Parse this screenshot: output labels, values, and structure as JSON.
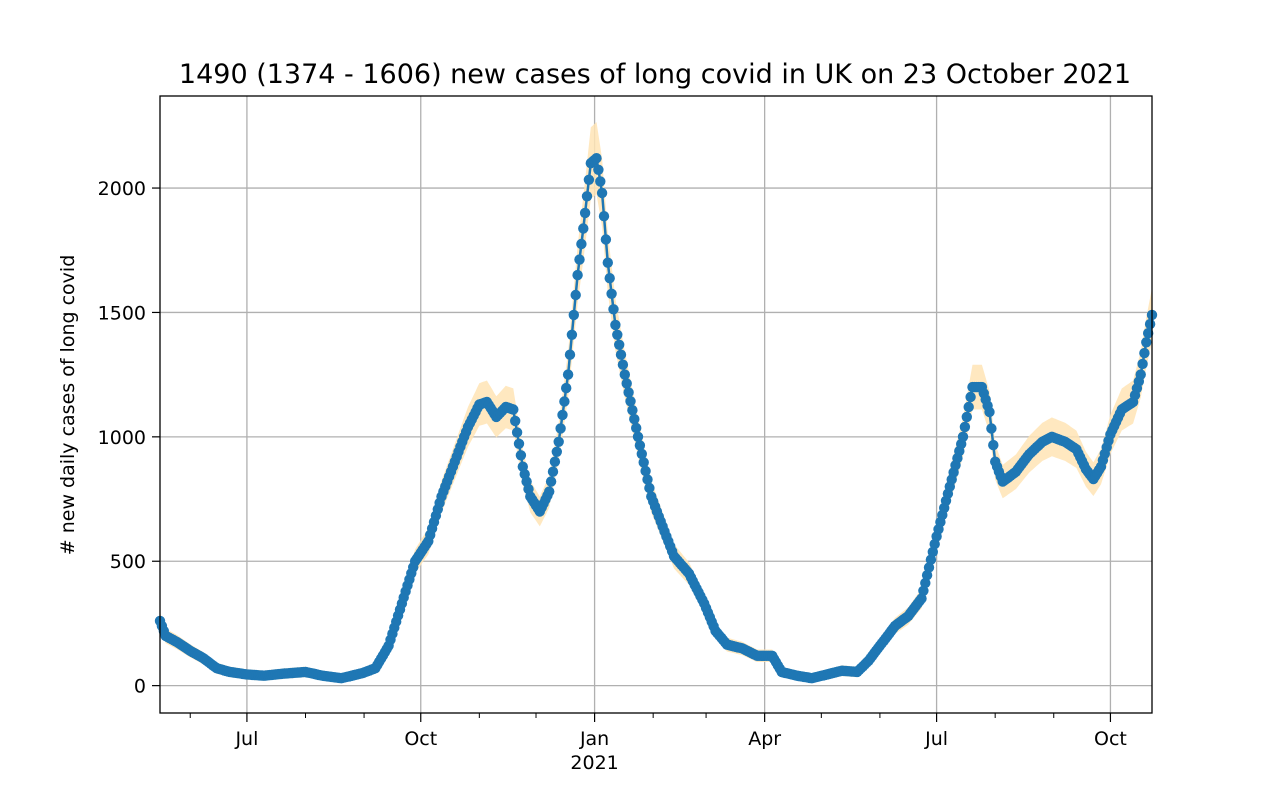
{
  "chart_data": {
    "type": "line",
    "title": "1490 (1374 - 1606) new cases of long covid in UK on 23 October 2021",
    "xlabel": "",
    "ylabel": "# new daily cases of long covid",
    "x_start": "2020-05-16",
    "x_end": "2021-10-23",
    "xlim": [
      "2020-05-16",
      "2021-10-23"
    ],
    "ylim": [
      -110,
      2370
    ],
    "yticks": [
      0,
      500,
      1000,
      1500,
      2000
    ],
    "yticklabels": [
      "0",
      "500",
      "1000",
      "1500",
      "2000"
    ],
    "xticks": [
      {
        "date": "2020-07-01",
        "label": "Jul",
        "sublabel": ""
      },
      {
        "date": "2020-10-01",
        "label": "Oct",
        "sublabel": ""
      },
      {
        "date": "2021-01-01",
        "label": "Jan",
        "sublabel": "2021"
      },
      {
        "date": "2021-04-01",
        "label": "Apr",
        "sublabel": ""
      },
      {
        "date": "2021-07-01",
        "label": "Jul",
        "sublabel": ""
      },
      {
        "date": "2021-10-01",
        "label": "Oct",
        "sublabel": ""
      }
    ],
    "minor_xticks": [
      "2020-06-01",
      "2020-08-01",
      "2020-09-01",
      "2020-11-01",
      "2020-12-01",
      "2021-02-01",
      "2021-03-01",
      "2021-05-01",
      "2021-06-01",
      "2021-08-01",
      "2021-09-01"
    ],
    "grid": true,
    "series": [
      {
        "color": "#1f77b4",
        "band_color": "#ffe4b5",
        "points": [
          [
            "2020-05-16",
            260
          ],
          [
            "2020-05-19",
            200
          ],
          [
            "2020-05-25",
            175
          ],
          [
            "2020-06-01",
            140
          ],
          [
            "2020-06-08",
            110
          ],
          [
            "2020-06-15",
            70
          ],
          [
            "2020-06-22",
            55
          ],
          [
            "2020-07-01",
            45
          ],
          [
            "2020-07-10",
            40
          ],
          [
            "2020-07-20",
            48
          ],
          [
            "2020-08-01",
            55
          ],
          [
            "2020-08-10",
            40
          ],
          [
            "2020-08-20",
            30
          ],
          [
            "2020-08-31",
            50
          ],
          [
            "2020-09-07",
            70
          ],
          [
            "2020-09-14",
            160
          ],
          [
            "2020-09-21",
            330
          ],
          [
            "2020-09-28",
            500
          ],
          [
            "2020-10-05",
            580
          ],
          [
            "2020-10-12",
            760
          ],
          [
            "2020-10-19",
            900
          ],
          [
            "2020-10-26",
            1040
          ],
          [
            "2020-11-01",
            1130
          ],
          [
            "2020-11-05",
            1140
          ],
          [
            "2020-11-10",
            1080
          ],
          [
            "2020-11-15",
            1120
          ],
          [
            "2020-11-19",
            1110
          ],
          [
            "2020-11-24",
            880
          ],
          [
            "2020-11-28",
            760
          ],
          [
            "2020-12-03",
            700
          ],
          [
            "2020-12-08",
            780
          ],
          [
            "2020-12-13",
            980
          ],
          [
            "2020-12-18",
            1250
          ],
          [
            "2020-12-23",
            1650
          ],
          [
            "2020-12-27",
            1900
          ],
          [
            "2020-12-30",
            2100
          ],
          [
            "2021-01-02",
            2120
          ],
          [
            "2021-01-05",
            1980
          ],
          [
            "2021-01-08",
            1700
          ],
          [
            "2021-01-12",
            1450
          ],
          [
            "2021-01-17",
            1250
          ],
          [
            "2021-01-24",
            1000
          ],
          [
            "2021-01-31",
            760
          ],
          [
            "2021-02-06",
            640
          ],
          [
            "2021-02-12",
            520
          ],
          [
            "2021-02-20",
            450
          ],
          [
            "2021-02-28",
            330
          ],
          [
            "2021-03-06",
            220
          ],
          [
            "2021-03-12",
            165
          ],
          [
            "2021-03-20",
            150
          ],
          [
            "2021-03-28",
            120
          ],
          [
            "2021-04-05",
            120
          ],
          [
            "2021-04-10",
            55
          ],
          [
            "2021-04-18",
            40
          ],
          [
            "2021-04-26",
            30
          ],
          [
            "2021-05-04",
            45
          ],
          [
            "2021-05-12",
            60
          ],
          [
            "2021-05-20",
            55
          ],
          [
            "2021-05-26",
            100
          ],
          [
            "2021-06-02",
            170
          ],
          [
            "2021-06-09",
            240
          ],
          [
            "2021-06-16",
            280
          ],
          [
            "2021-06-23",
            350
          ],
          [
            "2021-07-01",
            600
          ],
          [
            "2021-07-08",
            800
          ],
          [
            "2021-07-15",
            1000
          ],
          [
            "2021-07-20",
            1200
          ],
          [
            "2021-07-25",
            1200
          ],
          [
            "2021-07-29",
            1100
          ],
          [
            "2021-08-01",
            900
          ],
          [
            "2021-08-05",
            820
          ],
          [
            "2021-08-12",
            860
          ],
          [
            "2021-08-19",
            930
          ],
          [
            "2021-08-26",
            980
          ],
          [
            "2021-08-31",
            1000
          ],
          [
            "2021-09-07",
            980
          ],
          [
            "2021-09-13",
            950
          ],
          [
            "2021-09-18",
            870
          ],
          [
            "2021-09-22",
            830
          ],
          [
            "2021-09-26",
            880
          ],
          [
            "2021-10-01",
            1010
          ],
          [
            "2021-10-07",
            1110
          ],
          [
            "2021-10-13",
            1140
          ],
          [
            "2021-10-17",
            1250
          ],
          [
            "2021-10-20",
            1380
          ],
          [
            "2021-10-23",
            1490
          ]
        ]
      }
    ]
  }
}
